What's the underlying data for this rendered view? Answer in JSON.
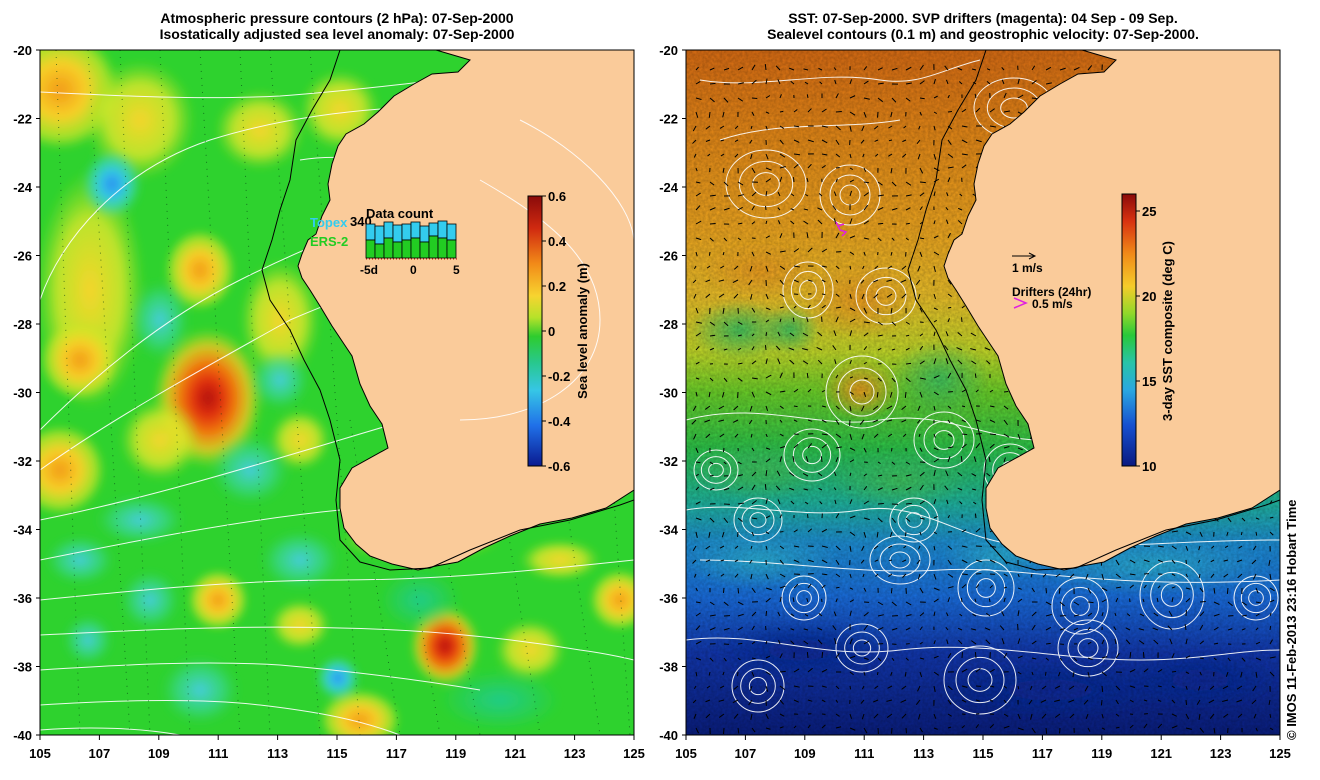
{
  "left_panel": {
    "title_line1": "Atmospheric pressure contours (2 hPa): 07-Sep-2000",
    "title_line2": "Isostatically adjusted sea level anomaly: 07-Sep-2000",
    "colorbar": {
      "label": "Sea level anomaly (m)",
      "ticks": [
        "0.6",
        "0.4",
        "0.2",
        "0",
        "-0.2",
        "-0.4",
        "-0.6"
      ],
      "min": -0.6,
      "max": 0.6
    },
    "data_count": {
      "title": "Data count",
      "value": "340",
      "legend": [
        {
          "label": "Topex",
          "color": "#33ccee"
        },
        {
          "label": "ERS-2",
          "color": "#22cc22"
        }
      ],
      "ticks": [
        "-5d",
        "0",
        "5"
      ]
    }
  },
  "right_panel": {
    "title_line1": "SST: 07-Sep-2000. SVP drifters (magenta): 04 Sep - 09 Sep.",
    "title_line2": "Sealevel contours (0.1 m) and geostrophic velocity: 07-Sep-2000.",
    "colorbar": {
      "label": "3-day SST composite (deg C)",
      "ticks": [
        "25",
        "20",
        "15",
        "10"
      ],
      "min": 10,
      "max": 26
    },
    "velocity_legend": "1 m/s",
    "drifters_legend_title": "Drifters (24hr)",
    "drifters_legend_value": "0.5 m/s"
  },
  "axes": {
    "lon_ticks": [
      "105",
      "107",
      "109",
      "111",
      "113",
      "115",
      "117",
      "119",
      "121",
      "123",
      "125"
    ],
    "lat_ticks": [
      "-20",
      "-22",
      "-24",
      "-26",
      "-28",
      "-30",
      "-32",
      "-34",
      "-36",
      "-38",
      "-40"
    ]
  },
  "copyright": "© IMOS 11-Feb-2013 23:16 Hobart Time",
  "colors": {
    "land": "#facb9a",
    "ocean_base": "#2ed22e",
    "coastline": "#000000",
    "contour": "#ffffff"
  }
}
